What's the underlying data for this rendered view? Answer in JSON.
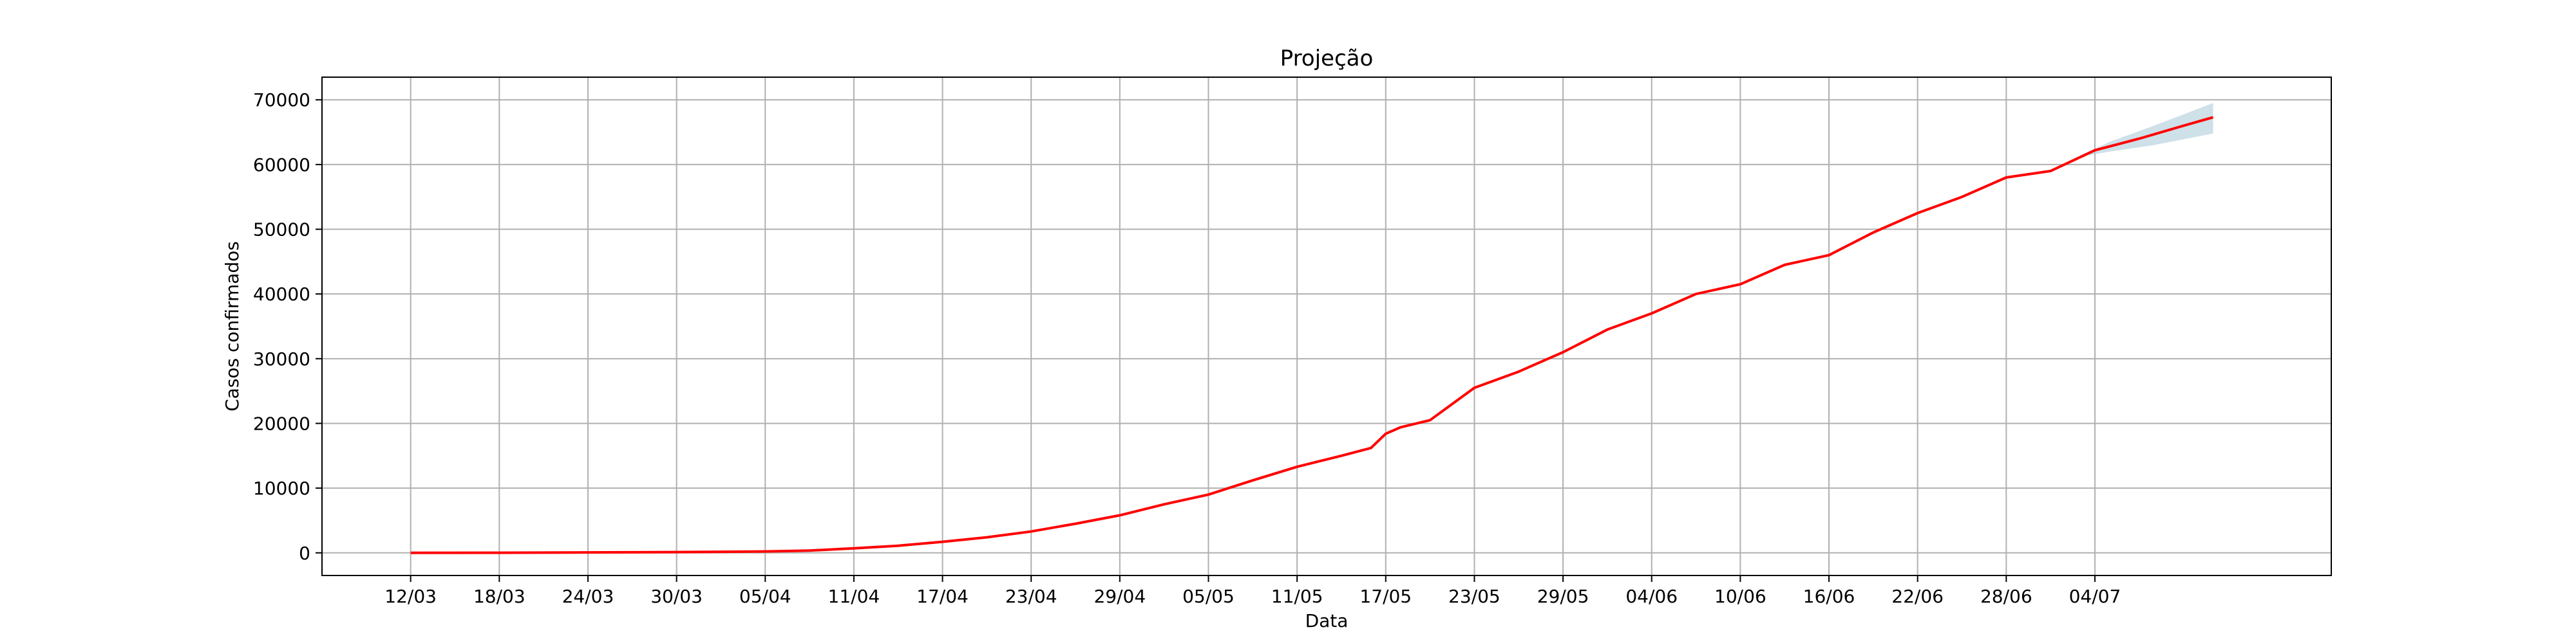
{
  "chart_data": {
    "type": "line",
    "title": "Projeção",
    "xlabel": "Data",
    "ylabel": "Casos confirmados",
    "grid": true,
    "legend": "none",
    "colors": {
      "line": "#ff0000",
      "band": "#aecbd9",
      "grid": "#b0b0b0"
    },
    "x_tick_labels": [
      "12/03",
      "18/03",
      "24/03",
      "30/03",
      "05/04",
      "11/04",
      "17/04",
      "23/04",
      "29/04",
      "05/05",
      "11/05",
      "17/05",
      "23/05",
      "29/05",
      "04/06",
      "10/06",
      "16/06",
      "22/06",
      "28/06",
      "04/07"
    ],
    "y_ticks": [
      0,
      10000,
      20000,
      30000,
      40000,
      50000,
      60000,
      70000
    ],
    "y_tick_labels": [
      "0",
      "10000",
      "20000",
      "30000",
      "40000",
      "50000",
      "60000",
      "70000"
    ],
    "xlim": [
      "2020-03-06",
      "2020-07-20"
    ],
    "ylim": [
      -3500,
      73500
    ],
    "series": [
      {
        "points": [
          [
            "2020-03-12",
            0
          ],
          [
            "2020-03-18",
            20
          ],
          [
            "2020-03-24",
            60
          ],
          [
            "2020-03-30",
            110
          ],
          [
            "2020-04-05",
            210
          ],
          [
            "2020-04-08",
            350
          ],
          [
            "2020-04-11",
            700
          ],
          [
            "2020-04-14",
            1100
          ],
          [
            "2020-04-17",
            1700
          ],
          [
            "2020-04-20",
            2400
          ],
          [
            "2020-04-23",
            3300
          ],
          [
            "2020-04-26",
            4500
          ],
          [
            "2020-04-29",
            5800
          ],
          [
            "2020-05-02",
            7500
          ],
          [
            "2020-05-05",
            9000
          ],
          [
            "2020-05-08",
            11200
          ],
          [
            "2020-05-11",
            13300
          ],
          [
            "2020-05-14",
            15000
          ],
          [
            "2020-05-16",
            16200
          ],
          [
            "2020-05-17",
            18400
          ],
          [
            "2020-05-18",
            19400
          ],
          [
            "2020-05-20",
            20500
          ],
          [
            "2020-05-23",
            25500
          ],
          [
            "2020-05-26",
            28000
          ],
          [
            "2020-05-29",
            31000
          ],
          [
            "2020-06-01",
            34500
          ],
          [
            "2020-06-04",
            37000
          ],
          [
            "2020-06-07",
            40000
          ],
          [
            "2020-06-10",
            41500
          ],
          [
            "2020-06-13",
            44500
          ],
          [
            "2020-06-16",
            46000
          ],
          [
            "2020-06-19",
            49500
          ],
          [
            "2020-06-22",
            52500
          ],
          [
            "2020-06-25",
            55000
          ],
          [
            "2020-06-28",
            58000
          ],
          [
            "2020-07-01",
            59000
          ],
          [
            "2020-07-04",
            62200
          ],
          [
            "2020-07-07",
            64000
          ],
          [
            "2020-07-10",
            66000
          ],
          [
            "2020-07-12",
            67300
          ]
        ]
      }
    ],
    "confidence_band": {
      "points": [
        [
          "2020-07-03",
          61200,
          61400
        ],
        [
          "2020-07-05",
          62000,
          63500
        ],
        [
          "2020-07-08",
          63000,
          66000
        ],
        [
          "2020-07-12",
          64800,
          69500
        ]
      ]
    }
  }
}
